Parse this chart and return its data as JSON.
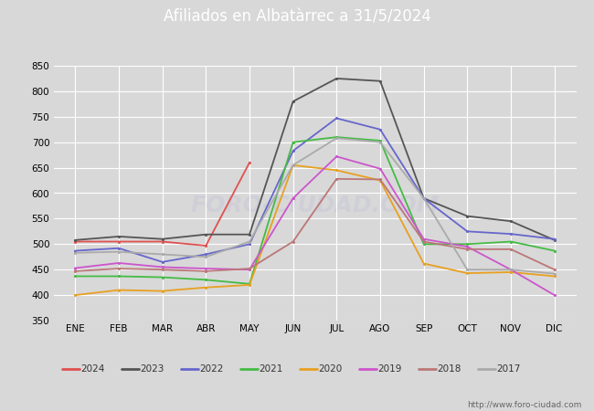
{
  "title": "Afiliados en Albatàrrec a 31/5/2024",
  "title_bgcolor": "#4a9fd4",
  "background_color": "#d8d8d8",
  "plot_bgcolor": "#d8d8d8",
  "ylim": [
    350,
    850
  ],
  "yticks": [
    350,
    400,
    450,
    500,
    550,
    600,
    650,
    700,
    750,
    800,
    850
  ],
  "months": [
    "ENE",
    "FEB",
    "MAR",
    "ABR",
    "MAY",
    "JUN",
    "JUL",
    "AGO",
    "SEP",
    "OCT",
    "NOV",
    "DIC"
  ],
  "watermark": "FORO-CIUDAD.COM",
  "url": "http://www.foro-ciudad.com",
  "series": {
    "2024": {
      "color": "#e05050",
      "data": [
        505,
        505,
        505,
        497,
        660,
        null,
        null,
        null,
        null,
        null,
        null,
        null
      ]
    },
    "2023": {
      "color": "#555555",
      "data": [
        508,
        515,
        510,
        519,
        519,
        780,
        825,
        820,
        590,
        555,
        545,
        508
      ]
    },
    "2022": {
      "color": "#6666cc",
      "data": [
        487,
        492,
        465,
        480,
        500,
        683,
        747,
        725,
        590,
        525,
        520,
        510
      ]
    },
    "2021": {
      "color": "#44bb44",
      "data": [
        437,
        437,
        435,
        430,
        422,
        700,
        710,
        703,
        500,
        500,
        505,
        487
      ]
    },
    "2020": {
      "color": "#e8a020",
      "data": [
        400,
        410,
        408,
        415,
        420,
        655,
        645,
        625,
        462,
        443,
        445,
        437
      ]
    },
    "2019": {
      "color": "#cc55cc",
      "data": [
        453,
        463,
        455,
        452,
        450,
        590,
        672,
        648,
        510,
        495,
        450,
        400
      ]
    },
    "2018": {
      "color": "#bb7777",
      "data": [
        447,
        452,
        450,
        447,
        452,
        505,
        628,
        627,
        505,
        490,
        490,
        450
      ]
    },
    "2017": {
      "color": "#aaaaaa",
      "data": [
        483,
        485,
        480,
        475,
        505,
        655,
        708,
        700,
        590,
        450,
        450,
        442
      ]
    }
  },
  "legend_order": [
    "2024",
    "2023",
    "2022",
    "2021",
    "2020",
    "2019",
    "2018",
    "2017"
  ]
}
